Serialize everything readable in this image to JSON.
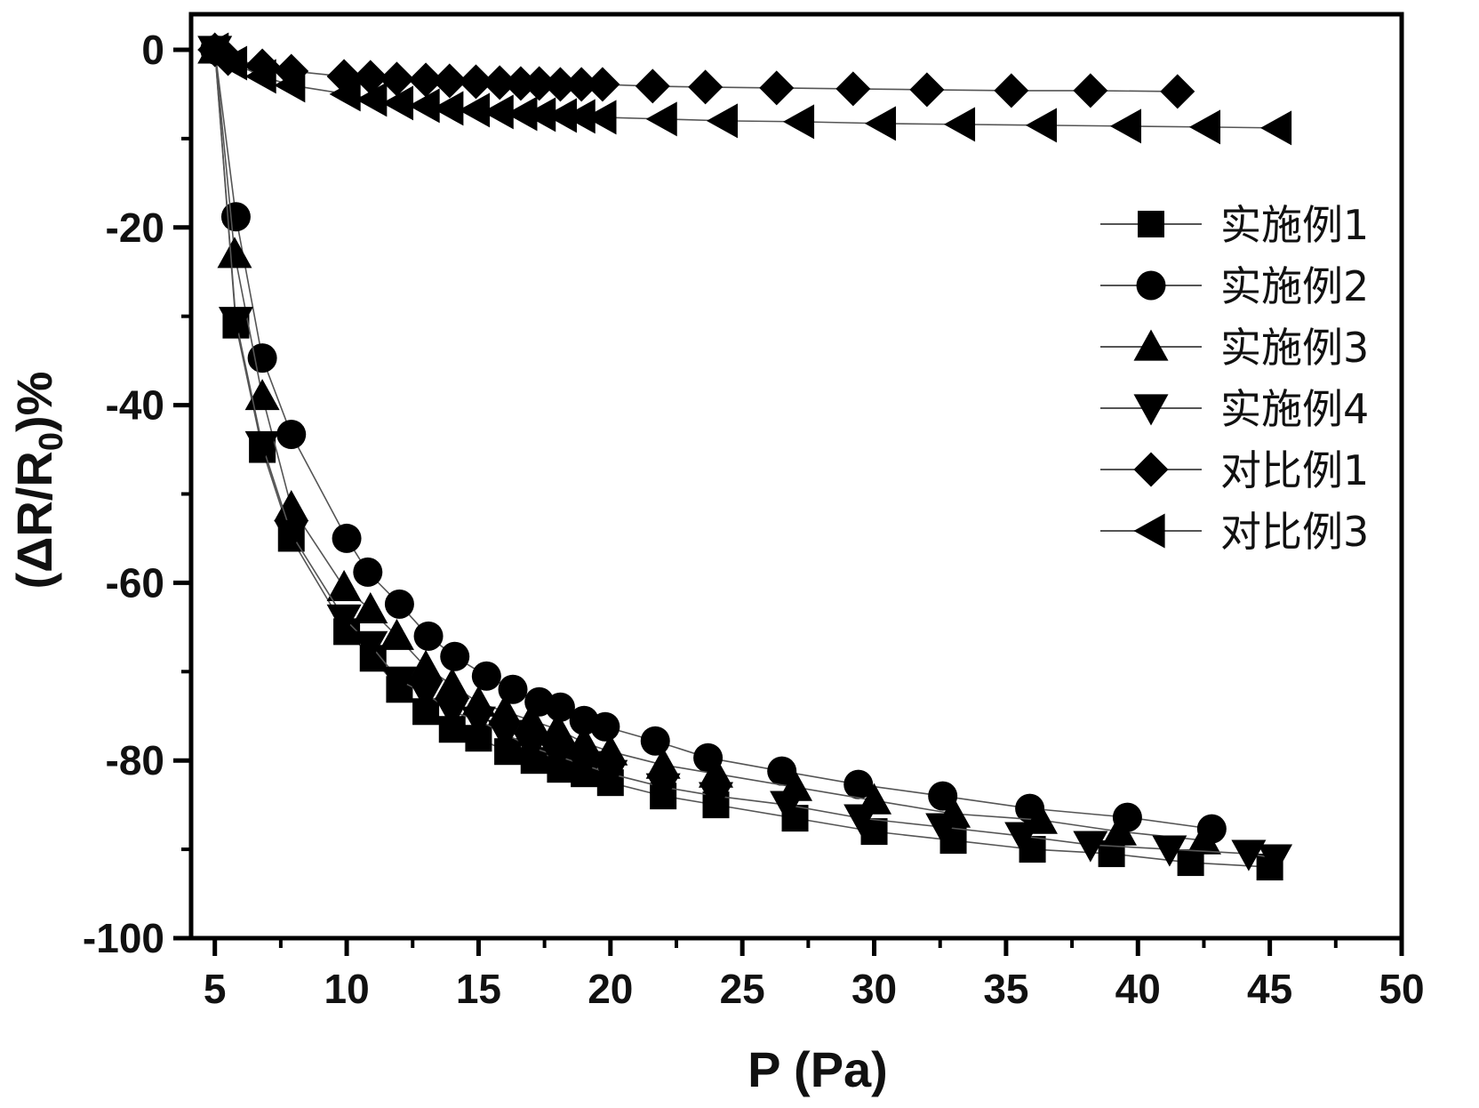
{
  "chart_data": {
    "type": "line",
    "title": "",
    "xlabel": "P (Pa)",
    "ylabel_parts": [
      "(ΔR/R",
      "0",
      ")%"
    ],
    "xlim": [
      4.1,
      50
    ],
    "ylim": [
      -100,
      4
    ],
    "xticks": [
      5,
      10,
      15,
      20,
      25,
      30,
      35,
      40,
      45,
      50
    ],
    "yticks": [
      0,
      -20,
      -40,
      -60,
      -80,
      -100
    ],
    "grid": false,
    "legend_position": "right",
    "series": [
      {
        "name": "实施例1",
        "marker": "square",
        "x": [
          5,
          5.8,
          6.8,
          7.9,
          10,
          11,
          12,
          13,
          14,
          15,
          16.1,
          17.1,
          18.1,
          19,
          20,
          22,
          24,
          27,
          30,
          33,
          36,
          39,
          42,
          45
        ],
        "y": [
          0,
          -31,
          -45,
          -55,
          -65.5,
          -68.5,
          -72,
          -74.5,
          -76.5,
          -77.5,
          -79,
          -80,
          -81,
          -81.5,
          -82.5,
          -84,
          -85,
          -86.5,
          -88,
          -89,
          -90,
          -90.5,
          -91.5,
          -92
        ]
      },
      {
        "name": "实施例2",
        "marker": "circle",
        "x": [
          5,
          5.8,
          6.8,
          7.9,
          10,
          10.8,
          12,
          13.1,
          14.1,
          15.3,
          16.3,
          17.3,
          18.1,
          19,
          19.8,
          21.7,
          23.7,
          26.5,
          29.4,
          32.6,
          35.9,
          39.6,
          42.8
        ],
        "y": [
          0,
          -18.8,
          -34.7,
          -43.3,
          -55,
          -58.8,
          -62.4,
          -66,
          -68.3,
          -70.5,
          -72,
          -73.4,
          -74,
          -75.5,
          -76.2,
          -77.8,
          -79.7,
          -81.2,
          -82.7,
          -84,
          -85.4,
          -86.4,
          -87.7
        ]
      },
      {
        "name": "实施例3",
        "marker": "triangle-up",
        "x": [
          5,
          5.75,
          6.8,
          7.9,
          9.9,
          10.9,
          11.9,
          13,
          14,
          15,
          16,
          17,
          18,
          19,
          20,
          22,
          24,
          27,
          30,
          33,
          36.3,
          39.3,
          42.5
        ],
        "y": [
          0,
          -23,
          -39,
          -51.5,
          -60.5,
          -63,
          -66,
          -69.5,
          -71.5,
          -73.5,
          -74.5,
          -75.5,
          -76.5,
          -78,
          -79,
          -80.5,
          -81.5,
          -83,
          -84.5,
          -86,
          -86.7,
          -88,
          -89
        ]
      },
      {
        "name": "实施例4",
        "marker": "triangle-down",
        "x": [
          5,
          5.8,
          6.8,
          7.9,
          9.9,
          10.9,
          12,
          13,
          14,
          15,
          16,
          17,
          18,
          19,
          20,
          22,
          24,
          26.7,
          29.5,
          32.6,
          35.6,
          38.2,
          41.2,
          44.2,
          45.2
        ],
        "y": [
          0,
          -30.5,
          -44.5,
          -54.5,
          -64,
          -67,
          -71,
          -72.5,
          -74.5,
          -75.5,
          -77,
          -78.5,
          -79.5,
          -80.5,
          -81.5,
          -83,
          -84,
          -85,
          -86.5,
          -87.5,
          -88.5,
          -89.5,
          -90,
          -90.5,
          -91
        ]
      },
      {
        "name": "对比例1",
        "marker": "diamond",
        "x": [
          5,
          5.5,
          6.8,
          7.9,
          9.9,
          10.9,
          11.9,
          13,
          13.9,
          14.9,
          15.8,
          16.6,
          17.3,
          18.1,
          18.9,
          19.7,
          21.6,
          23.6,
          26.3,
          29.2,
          32,
          35.2,
          38.2,
          41.5
        ],
        "y": [
          0,
          -1,
          -1.8,
          -2.4,
          -3,
          -3.1,
          -3.3,
          -3.4,
          -3.5,
          -3.6,
          -3.7,
          -3.8,
          -3.8,
          -3.9,
          -3.9,
          -3.9,
          -4.1,
          -4.2,
          -4.3,
          -4.4,
          -4.5,
          -4.6,
          -4.6,
          -4.7
        ]
      },
      {
        "name": "对比例3",
        "marker": "triangle-left",
        "x": [
          5,
          5.7,
          6.8,
          7.9,
          10,
          11,
          12,
          13,
          13.9,
          14.9,
          15.8,
          16.7,
          17.4,
          18.2,
          18.9,
          19.7,
          22,
          24.3,
          27.2,
          30.3,
          33.3,
          36.4,
          39.6,
          42.6,
          45.3
        ],
        "y": [
          0,
          -1.5,
          -3,
          -4,
          -5,
          -5.6,
          -6,
          -6.3,
          -6.6,
          -6.8,
          -7,
          -7.2,
          -7.3,
          -7.4,
          -7.5,
          -7.6,
          -7.8,
          -8,
          -8.1,
          -8.3,
          -8.4,
          -8.5,
          -8.6,
          -8.7,
          -8.8
        ]
      }
    ],
    "colors": {
      "marker": "#000000",
      "line": "#555555",
      "axis": "#000000"
    }
  }
}
